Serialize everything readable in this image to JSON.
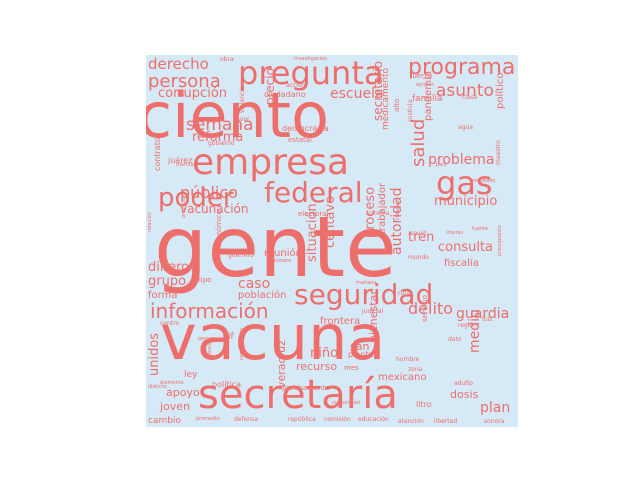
{
  "wordcloud": {
    "text_color": "#ee6e6b",
    "background_color": "#d6e9f7",
    "words": {
      "gente": "gente",
      "vacuna": "vacuna",
      "ciento": "ciento",
      "secretaria": "secretaría",
      "empresa": "empresa",
      "pregunta": "pregunta",
      "seguridad": "seguridad",
      "federal": "federal",
      "informacion": "información",
      "programa": "programa",
      "gas": "gas",
      "poder": "poder",
      "persona": "persona",
      "derecho": "derecho",
      "escuela": "escuela",
      "asunto": "asunto",
      "semana": "semana",
      "reforma": "reforma",
      "corrupcion": "corrupción",
      "publico": "público",
      "vacunacion": "vacunación",
      "problema": "problema",
      "municipio": "municipio",
      "salud": "salud",
      "delito": "delito",
      "guardia": "guardia",
      "caso": "caso",
      "grupo": "grupo",
      "dinero": "dinero",
      "forma": "forma",
      "poblacion": "población",
      "reunion": "reunión",
      "situacion": "situación",
      "centavo": "centavo",
      "proceso": "proceso",
      "autoridad": "autoridad",
      "trabajador": "trabajador",
      "tren": "tren",
      "consulta": "consulta",
      "fiscalia": "fiscalía",
      "medio": "medio",
      "plan": "plan",
      "dosis": "dosis",
      "nino": "niño",
      "frontera": "frontera",
      "recurso": "recurso",
      "veracruz": "veracruz",
      "mexicano": "mexicano",
      "politica": "política",
      "joven": "joven",
      "apoyo": "apoyo",
      "unidos": "unidos",
      "cambio": "cambio",
      "ley": "ley",
      "precio": "precio",
      "bienestar": "bienestar",
      "san": "san",
      "planta": "planta",
      "litro": "litro",
      "politico": "político",
      "pandemia": "pandemia",
      "familia": "familia",
      "medicamento": "medicamento",
      "ciudadano": "ciudadano",
      "democracia": "democracia",
      "contrato": "contrato",
      "juarez": "juárez",
      "estatal": "estatal",
      "electoral": "electoral",
      "sistema": "sistema",
      "precisamente": "precisamente",
      "republica": "república",
      "comision": "comisión",
      "educacion": "educación",
      "atencion": "atención",
      "libertad": "libertad",
      "sonora": "sonora",
      "defensa": "defensa",
      "promedio": "promedio",
      "hombre": "hombre",
      "zona": "zona",
      "servicio": "servicio",
      "dato": "dato",
      "adulto": "adulto",
      "comunidad": "comunidad",
      "judicial": "judicial",
      "mes": "mes",
      "clase": "clase",
      "fuerza": "fuerza",
      "alto": "alto",
      "justicia": "justicia",
      "agua": "agua",
      "obra": "obra",
      "accion": "acción",
      "opinion": "opinión",
      "favor": "favor",
      "gobierno": "gobierno",
      "violencia": "violencia",
      "mundo": "mundo",
      "economico": "económico",
      "centro": "centro",
      "numero": "número",
      "tipo": "tipo",
      "region": "región",
      "luis": "luis",
      "elemento": "elemento",
      "marina": "marina",
      "covid": "covid",
      "interes": "interés",
      "pais": "país",
      "resultado": "resultado",
      "ruta": "ruta",
      "presupuesto": "presupuesto",
      "maestro": "maestro",
      "relacion": "relación",
      "proyecto": "proyecto",
      "manana": "mañana",
      "construccion": "construcción",
      "avance": "avance",
      "distinto": "distinto",
      "guerrero": "guerrero",
      "chiapas": "chiapas",
      "if": "if",
      "pemex": "pemex",
      "fuente": "fuente",
      "secretario": "secretario",
      "investigacion": "investigación"
    }
  }
}
